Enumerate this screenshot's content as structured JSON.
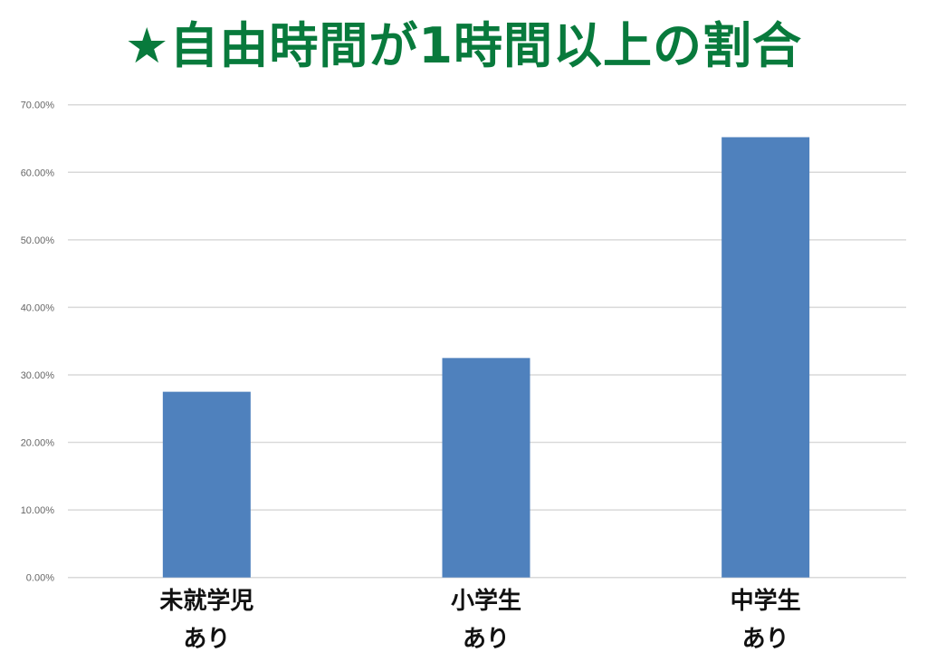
{
  "title": "★自由時間が1時間以上の割合",
  "colors": {
    "title": "#087a3c",
    "bar": "#4f81bd",
    "grid": "#d9d9d9"
  },
  "chart_data": {
    "type": "bar",
    "title": "★自由時間が1時間以上の割合",
    "categories": [
      [
        "未就学児",
        "あり"
      ],
      [
        "小学生",
        "あり"
      ],
      [
        "中学生",
        "あり"
      ]
    ],
    "values": [
      27.5,
      32.5,
      65.2
    ],
    "unit": "%",
    "ylim": [
      0,
      70
    ],
    "yticks": [
      "0.00%",
      "10.00%",
      "20.00%",
      "30.00%",
      "40.00%",
      "50.00%",
      "60.00%",
      "70.00%"
    ],
    "grid": true,
    "legend": "none",
    "xlabel": "",
    "ylabel": ""
  }
}
